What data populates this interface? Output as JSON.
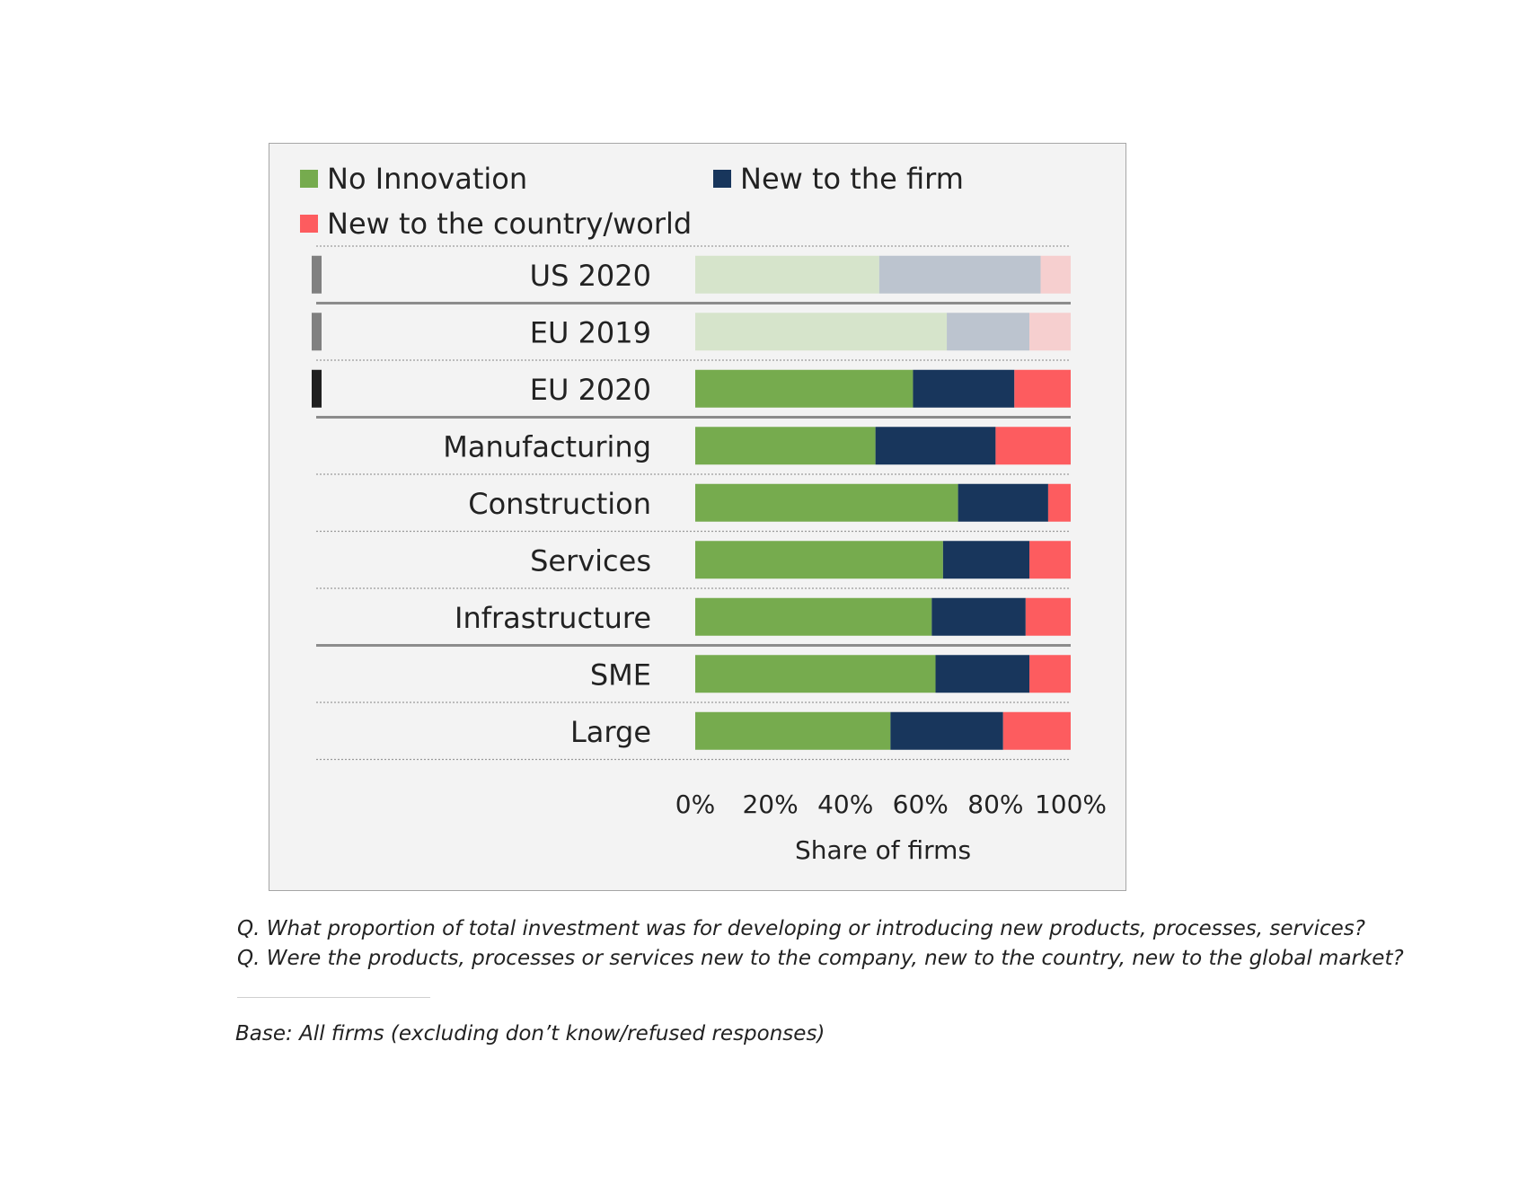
{
  "chart_data": {
    "type": "bar",
    "stacked": true,
    "orientation": "horizontal",
    "categories": [
      "US 2020",
      "EU 2019",
      "EU 2020",
      "Manufacturing",
      "Construction",
      "Services",
      "Infrastructure",
      "SME",
      "Large"
    ],
    "highlighted": [
      false,
      false,
      true,
      true,
      true,
      true,
      true,
      true,
      true
    ],
    "series": [
      {
        "name": "No Innovation",
        "color": "#76ab4e",
        "faded_color": "#d6e4cb",
        "values": [
          49,
          67,
          58,
          48,
          70,
          66,
          63,
          64,
          52
        ]
      },
      {
        "name": "New to the firm",
        "color": "#18365c",
        "faded_color": "#bcc4cf",
        "values": [
          43,
          22,
          27,
          32,
          24,
          23,
          25,
          25,
          30
        ]
      },
      {
        "name": "New to the country/world",
        "color": "#fd5c5f",
        "faded_color": "#f6cfcf",
        "values": [
          8,
          11,
          15,
          20,
          6,
          11,
          12,
          11,
          18
        ]
      }
    ],
    "xticks": [
      "0%",
      "20%",
      "40%",
      "60%",
      "80%",
      "100%"
    ],
    "xlim": [
      0,
      100
    ],
    "xlabel": "Share of firms",
    "legend_position": "top",
    "grid": false,
    "group_separators_after": [
      "US 2020",
      "EU 2020",
      "Infrastructure"
    ],
    "row_markers": {
      "US 2020": "#808080",
      "EU 2019": "#808080",
      "EU 2020": "#1f1f1f"
    }
  },
  "notes": {
    "q1": "Q. What proportion of total investment was for developing or introducing new products, processes, services?",
    "q2": "Q. Were the products, processes or services new to the company, new to the country, new to the global market?",
    "base": "Base: All firms (excluding don’t know/refused responses)"
  }
}
